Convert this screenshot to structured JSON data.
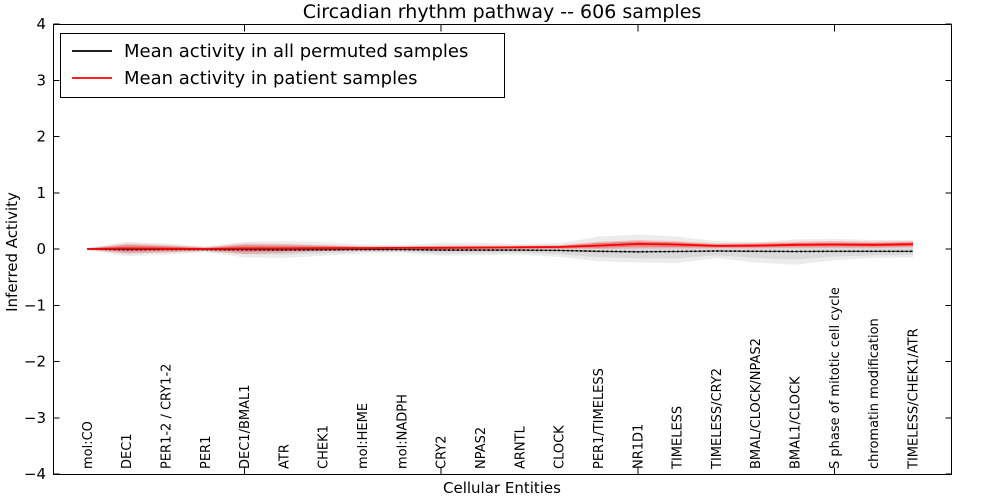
{
  "chart_data": {
    "type": "line",
    "title": "Circadian rhythm pathway -- 606 samples",
    "xlabel": "Cellular Entities",
    "ylabel": "Inferred Activity",
    "ylim": [
      -4,
      4
    ],
    "yticks": [
      4,
      3,
      2,
      1,
      0,
      -1,
      -2,
      -3,
      -4
    ],
    "grid": false,
    "legend_position": "upper left",
    "categories": [
      "mol:CO",
      "DEC1",
      "PER1-2 / CRY1-2",
      "PER1",
      "DEC1/BMAL1",
      "ATR",
      "CHEK1",
      "mol:HEME",
      "mol:NADPH",
      "CRY2",
      "NPAS2",
      "ARNTL",
      "CLOCK",
      "PER1/TIMELESS",
      "NR1D1",
      "TIMELESS",
      "TIMELESS/CRY2",
      "BMAL/CLOCK/NPAS2",
      "BMAL1/CLOCK",
      "S phase of mitotic cell cycle",
      "chromatin modification",
      "TIMELESS/CHEK1/ATR"
    ],
    "xtick_entity_indices": [
      4,
      9,
      14,
      19
    ],
    "series": [
      {
        "name": "Mean activity in all permuted samples",
        "color": "#000000",
        "style": "dotted",
        "values": [
          0,
          -0.01,
          -0.005,
          -0.01,
          -0.01,
          -0.015,
          -0.015,
          -0.01,
          -0.01,
          -0.02,
          -0.02,
          -0.02,
          -0.025,
          -0.04,
          -0.05,
          -0.045,
          -0.035,
          -0.04,
          -0.045,
          -0.04,
          -0.04,
          -0.04
        ]
      },
      {
        "name": "Mean activity in patient samples",
        "color": "#ff0000",
        "style": "solid",
        "values": [
          0,
          0.01,
          0.005,
          0,
          0.01,
          0.01,
          0.015,
          0.015,
          0.02,
          0.02,
          0.025,
          0.03,
          0.035,
          0.06,
          0.09,
          0.08,
          0.055,
          0.06,
          0.075,
          0.08,
          0.075,
          0.085
        ]
      }
    ],
    "bands": [
      {
        "name": "permuted-samples-envelope",
        "color": "#000000",
        "upper": [
          0.02,
          0.13,
          0.1,
          0.05,
          0.13,
          0.14,
          0.12,
          0.08,
          0.07,
          0.11,
          0.11,
          0.09,
          0.1,
          0.22,
          0.26,
          0.22,
          0.14,
          0.12,
          0.17,
          0.18,
          0.16,
          0.16
        ],
        "lower": [
          -0.02,
          -0.13,
          -0.1,
          -0.06,
          -0.15,
          -0.16,
          -0.12,
          -0.08,
          -0.07,
          -0.12,
          -0.11,
          -0.1,
          -0.14,
          -0.22,
          -0.24,
          -0.25,
          -0.16,
          -0.24,
          -0.28,
          -0.2,
          -0.16,
          -0.15
        ]
      },
      {
        "name": "patient-samples-envelope",
        "color": "#ff0000",
        "upper": [
          0.01,
          0.1,
          0.07,
          0.03,
          0.1,
          0.09,
          0.07,
          0.05,
          0.05,
          0.06,
          0.06,
          0.06,
          0.07,
          0.13,
          0.16,
          0.14,
          0.1,
          0.11,
          0.13,
          0.14,
          0.13,
          0.14
        ],
        "lower": [
          -0.01,
          -0.08,
          -0.06,
          -0.03,
          -0.09,
          -0.07,
          -0.04,
          -0.02,
          -0.01,
          -0.02,
          -0.01,
          0,
          0,
          0,
          0.01,
          0.01,
          0.01,
          0.01,
          0.02,
          0.02,
          0.02,
          0.03
        ]
      }
    ]
  }
}
